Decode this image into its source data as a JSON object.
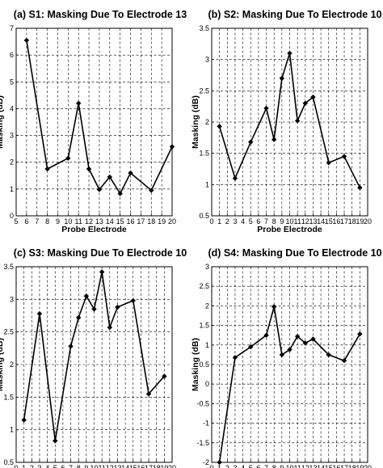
{
  "chart_data": [
    {
      "type": "line",
      "title": "(a) S1: Masking Due To Electrode 13",
      "xlabel": "Probe Electrode",
      "ylabel": "Masking (dB)",
      "xlim": [
        5,
        20
      ],
      "ylim": [
        0,
        7
      ],
      "xticks": [
        5,
        6,
        7,
        8,
        9,
        10,
        11,
        12,
        13,
        14,
        15,
        16,
        17,
        18,
        19,
        20
      ],
      "yticks": [
        0,
        1,
        2,
        3,
        4,
        5,
        6,
        7
      ],
      "grid": true,
      "x": [
        6,
        8,
        10,
        11,
        12,
        13,
        14,
        15,
        16,
        18,
        20
      ],
      "y": [
        6.55,
        1.75,
        2.15,
        4.2,
        1.75,
        0.98,
        1.45,
        0.83,
        1.6,
        0.95,
        2.58
      ]
    },
    {
      "type": "line",
      "title": "(b) S2: Masking Due To Electrode 10",
      "xlabel": "Probe Electrode",
      "ylabel": "Masking (dB)",
      "xlim": [
        0,
        20
      ],
      "ylim": [
        0.5,
        3.5
      ],
      "xticks": [
        0,
        1,
        2,
        3,
        4,
        5,
        6,
        7,
        8,
        9,
        10,
        11,
        12,
        13,
        14,
        15,
        16,
        17,
        18,
        19,
        20
      ],
      "yticks": [
        0.5,
        1,
        1.5,
        2,
        2.5,
        3,
        3.5
      ],
      "grid": true,
      "x": [
        1,
        3,
        5,
        7,
        8,
        9,
        10,
        11,
        12,
        13,
        15,
        17,
        19
      ],
      "y": [
        1.93,
        1.1,
        1.68,
        2.22,
        1.72,
        2.7,
        3.1,
        2.02,
        2.3,
        2.4,
        1.35,
        1.45,
        0.95
      ]
    },
    {
      "type": "line",
      "title": "(c) S3: Masking Due To Electrode 10",
      "xlabel": "Probe Electrode",
      "ylabel": "Masking (dB)",
      "xlim": [
        0,
        20
      ],
      "ylim": [
        0.5,
        3.5
      ],
      "xticks": [
        0,
        1,
        2,
        3,
        4,
        5,
        6,
        7,
        8,
        9,
        10,
        11,
        12,
        13,
        14,
        15,
        16,
        17,
        18,
        19,
        20
      ],
      "yticks": [
        0.5,
        1,
        1.5,
        2,
        2.5,
        3,
        3.5
      ],
      "grid": true,
      "x": [
        1,
        3,
        5,
        7,
        8,
        9,
        10,
        11,
        12,
        13,
        15,
        17,
        19
      ],
      "y": [
        1.15,
        2.78,
        0.83,
        2.28,
        2.72,
        3.05,
        2.85,
        3.42,
        2.57,
        2.88,
        2.98,
        1.55,
        1.82
      ]
    },
    {
      "type": "line",
      "title": "(d) S4: Masking Due To Electrode 10",
      "xlabel": "Probe Electrode",
      "ylabel": "Masking (dB)",
      "xlim": [
        0,
        20
      ],
      "ylim": [
        -2,
        3
      ],
      "xticks": [
        0,
        1,
        2,
        3,
        4,
        5,
        6,
        7,
        8,
        9,
        10,
        11,
        12,
        13,
        14,
        15,
        16,
        17,
        18,
        19,
        20
      ],
      "yticks": [
        -2,
        -1.5,
        -1,
        -0.5,
        0,
        0.5,
        1,
        1.5,
        2,
        2.5,
        3
      ],
      "grid": true,
      "x": [
        1,
        3,
        5,
        7,
        8,
        9,
        10,
        11,
        12,
        13,
        15,
        17,
        19
      ],
      "y": [
        -2.0,
        0.68,
        0.95,
        1.25,
        1.98,
        0.75,
        0.88,
        1.22,
        1.05,
        1.15,
        0.75,
        0.6,
        1.28
      ]
    }
  ]
}
